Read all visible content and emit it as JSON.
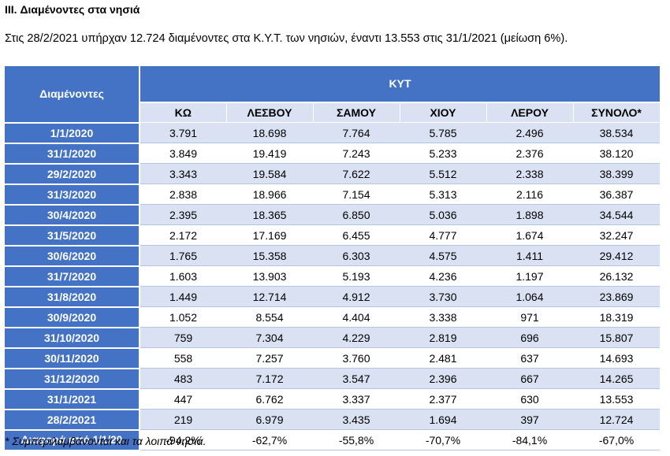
{
  "title": "III. Διαμένοντες στα νησιά",
  "intro": "Στις 28/2/2021 υπήρχαν 12.724 διαμένοντες στα Κ.Υ.Τ. των νησιών, έναντι 13.553 στις 31/1/2021 (μείωση 6%).",
  "table": {
    "corner_label": "Διαμένοντες",
    "group_label": "ΚΥΤ",
    "columns": [
      "ΚΩ",
      "ΛΕΣΒΟΥ",
      "ΣΑΜΟΥ",
      "ΧΙΟΥ",
      "ΛΕΡΟΥ",
      "ΣΥΝΟΛΟ*"
    ],
    "rows": [
      {
        "label": "1/1/2020",
        "values": [
          "3.791",
          "18.698",
          "7.764",
          "5.785",
          "2.496",
          "38.534"
        ]
      },
      {
        "label": "31/1/2020",
        "values": [
          "3.849",
          "19.419",
          "7.243",
          "5.233",
          "2.376",
          "38.120"
        ]
      },
      {
        "label": "29/2/2020",
        "values": [
          "3.343",
          "19.584",
          "7.622",
          "5.512",
          "2.338",
          "38.399"
        ]
      },
      {
        "label": "31/3/2020",
        "values": [
          "2.838",
          "18.966",
          "7.154",
          "5.313",
          "2.116",
          "36.387"
        ]
      },
      {
        "label": "30/4/2020",
        "values": [
          "2.395",
          "18.365",
          "6.850",
          "5.036",
          "1.898",
          "34.544"
        ]
      },
      {
        "label": "31/5/2020",
        "values": [
          "2.172",
          "17.169",
          "6.455",
          "4.777",
          "1.674",
          "32.247"
        ]
      },
      {
        "label": "30/6/2020",
        "values": [
          "1.765",
          "15.358",
          "6.303",
          "4.575",
          "1.411",
          "29.412"
        ]
      },
      {
        "label": "31/7/2020",
        "values": [
          "1.603",
          "13.903",
          "5.193",
          "4.236",
          "1.197",
          "26.132"
        ]
      },
      {
        "label": "31/8/2020",
        "values": [
          "1.449",
          "12.714",
          "4.912",
          "3.730",
          "1.064",
          "23.869"
        ]
      },
      {
        "label": "30/9/2020",
        "values": [
          "1.052",
          "8.554",
          "4.404",
          "3.338",
          "971",
          "18.319"
        ]
      },
      {
        "label": "31/10/2020",
        "values": [
          "759",
          "7.304",
          "4.229",
          "2.819",
          "696",
          "15.807"
        ]
      },
      {
        "label": "30/11/2020",
        "values": [
          "558",
          "7.257",
          "3.760",
          "2.481",
          "637",
          "14.693"
        ]
      },
      {
        "label": "31/12/2020",
        "values": [
          "483",
          "7.172",
          "3.547",
          "2.396",
          "667",
          "14.265"
        ]
      },
      {
        "label": "31/1/2021",
        "values": [
          "447",
          "6.762",
          "3.337",
          "2.377",
          "630",
          "13.553"
        ]
      },
      {
        "label": "28/2/2021",
        "values": [
          "219",
          "6.979",
          "3.435",
          "1.694",
          "397",
          "12.724"
        ]
      },
      {
        "label": "Διαφορά από 1/1/20",
        "values": [
          "-94,2%",
          "-62,7%",
          "-55,8%",
          "-70,7%",
          "-84,1%",
          "-67,0%"
        ]
      }
    ]
  },
  "footnote": "* Συμπεριλαμβάνονται και τα λοιπά νησιά.",
  "colors": {
    "header_blue": "#4472c4",
    "band_light": "#d9e1f2"
  }
}
